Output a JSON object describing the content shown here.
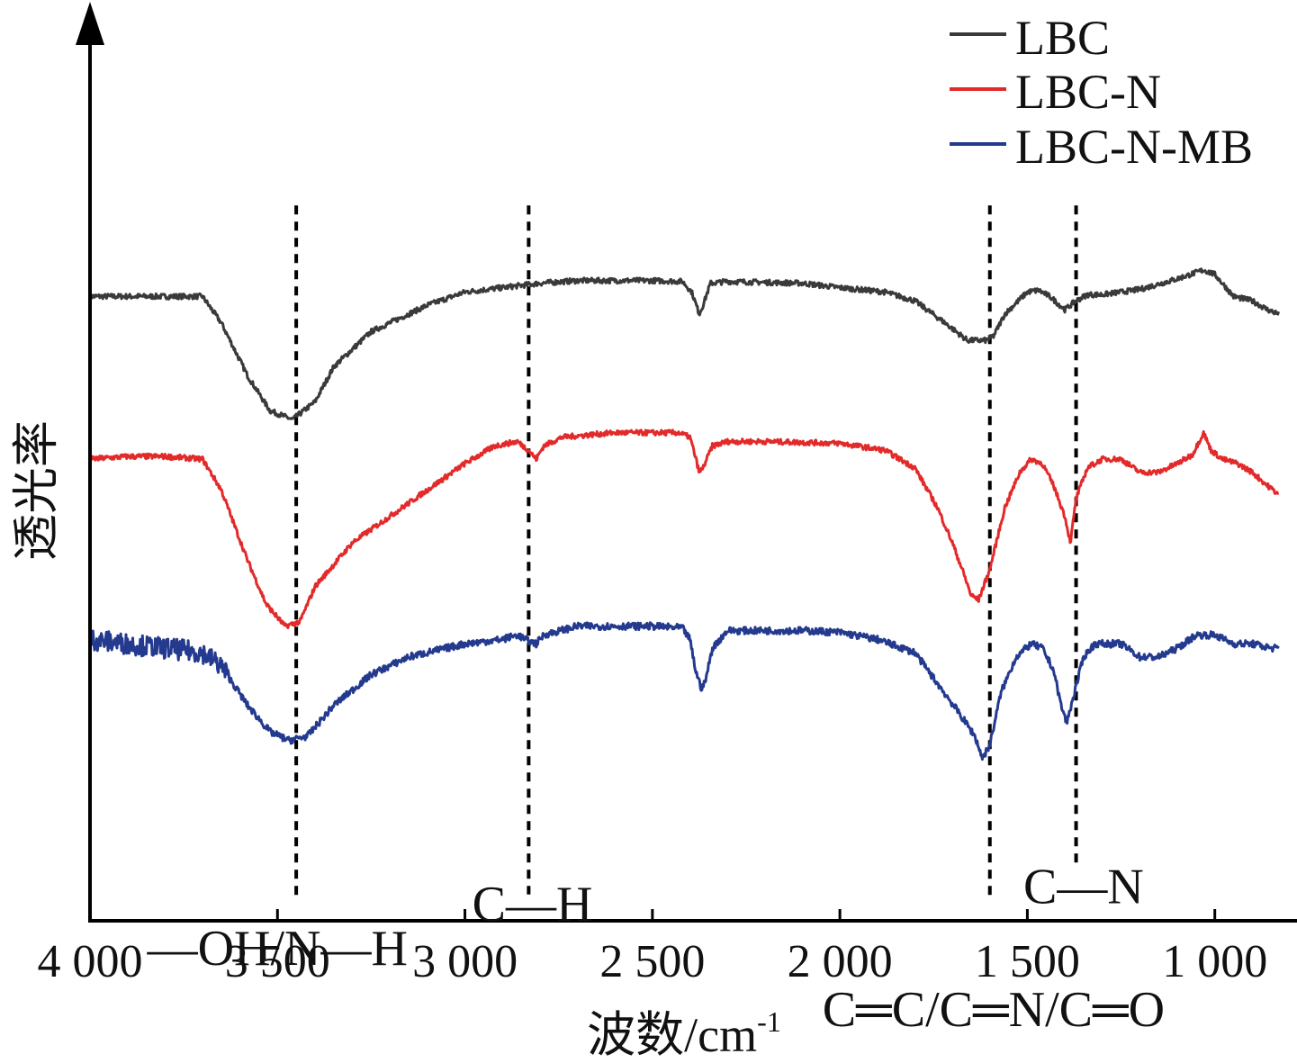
{
  "chart_data": {
    "type": "line",
    "xlabel": "波数/cm",
    "xlabel_sup": "-1",
    "ylabel": "透光率",
    "xlim": [
      4000,
      800
    ],
    "x_ticks": [
      4000,
      3500,
      3000,
      2500,
      2000,
      1500,
      1000
    ],
    "x_tick_labels": [
      "4 000",
      "3 500",
      "3 000",
      "2 500",
      "2 000",
      "1 500",
      "1 000"
    ],
    "y_ticks": [],
    "grid": false,
    "legend_position": "top-right",
    "series": [
      {
        "name": "LBC",
        "color": "#3a3a3a",
        "noise": 0.003,
        "points": [
          [
            4000,
            0.71
          ],
          [
            3800,
            0.71
          ],
          [
            3700,
            0.71
          ],
          [
            3650,
            0.68
          ],
          [
            3580,
            0.62
          ],
          [
            3520,
            0.58
          ],
          [
            3460,
            0.57
          ],
          [
            3400,
            0.59
          ],
          [
            3350,
            0.63
          ],
          [
            3250,
            0.67
          ],
          [
            3100,
            0.7
          ],
          [
            3000,
            0.715
          ],
          [
            2900,
            0.72
          ],
          [
            2800,
            0.725
          ],
          [
            2700,
            0.728
          ],
          [
            2500,
            0.728
          ],
          [
            2420,
            0.727
          ],
          [
            2395,
            0.715
          ],
          [
            2375,
            0.69
          ],
          [
            2365,
            0.7
          ],
          [
            2345,
            0.725
          ],
          [
            2300,
            0.727
          ],
          [
            2100,
            0.725
          ],
          [
            2000,
            0.72
          ],
          [
            1880,
            0.715
          ],
          [
            1800,
            0.705
          ],
          [
            1720,
            0.68
          ],
          [
            1660,
            0.66
          ],
          [
            1610,
            0.66
          ],
          [
            1590,
            0.665
          ],
          [
            1560,
            0.69
          ],
          [
            1500,
            0.715
          ],
          [
            1470,
            0.717
          ],
          [
            1440,
            0.71
          ],
          [
            1400,
            0.695
          ],
          [
            1385,
            0.7
          ],
          [
            1370,
            0.705
          ],
          [
            1340,
            0.712
          ],
          [
            1300,
            0.712
          ],
          [
            1200,
            0.718
          ],
          [
            1100,
            0.73
          ],
          [
            1030,
            0.74
          ],
          [
            1000,
            0.735
          ],
          [
            950,
            0.71
          ],
          [
            900,
            0.705
          ],
          [
            860,
            0.695
          ],
          [
            830,
            0.69
          ]
        ]
      },
      {
        "name": "LBC-N",
        "color": "#e32a2a",
        "noise": 0.003,
        "points": [
          [
            4000,
            0.525
          ],
          [
            3900,
            0.528
          ],
          [
            3800,
            0.528
          ],
          [
            3700,
            0.525
          ],
          [
            3650,
            0.49
          ],
          [
            3580,
            0.41
          ],
          [
            3530,
            0.36
          ],
          [
            3480,
            0.335
          ],
          [
            3440,
            0.34
          ],
          [
            3400,
            0.38
          ],
          [
            3300,
            0.43
          ],
          [
            3200,
            0.46
          ],
          [
            3100,
            0.49
          ],
          [
            3000,
            0.52
          ],
          [
            2920,
            0.54
          ],
          [
            2860,
            0.545
          ],
          [
            2830,
            0.535
          ],
          [
            2810,
            0.525
          ],
          [
            2790,
            0.54
          ],
          [
            2740,
            0.55
          ],
          [
            2600,
            0.555
          ],
          [
            2430,
            0.555
          ],
          [
            2400,
            0.55
          ],
          [
            2390,
            0.535
          ],
          [
            2375,
            0.51
          ],
          [
            2365,
            0.515
          ],
          [
            2340,
            0.54
          ],
          [
            2300,
            0.545
          ],
          [
            2200,
            0.545
          ],
          [
            2000,
            0.543
          ],
          [
            1880,
            0.535
          ],
          [
            1800,
            0.515
          ],
          [
            1740,
            0.47
          ],
          [
            1700,
            0.43
          ],
          [
            1670,
            0.395
          ],
          [
            1650,
            0.37
          ],
          [
            1630,
            0.365
          ],
          [
            1600,
            0.4
          ],
          [
            1560,
            0.47
          ],
          [
            1520,
            0.51
          ],
          [
            1490,
            0.525
          ],
          [
            1460,
            0.52
          ],
          [
            1430,
            0.495
          ],
          [
            1400,
            0.46
          ],
          [
            1385,
            0.43
          ],
          [
            1370,
            0.48
          ],
          [
            1340,
            0.515
          ],
          [
            1300,
            0.525
          ],
          [
            1250,
            0.525
          ],
          [
            1200,
            0.51
          ],
          [
            1150,
            0.51
          ],
          [
            1100,
            0.52
          ],
          [
            1060,
            0.53
          ],
          [
            1030,
            0.555
          ],
          [
            1010,
            0.535
          ],
          [
            980,
            0.525
          ],
          [
            940,
            0.52
          ],
          [
            900,
            0.51
          ],
          [
            860,
            0.495
          ],
          [
            830,
            0.485
          ]
        ]
      },
      {
        "name": "LBC-N-MB",
        "color": "#243a8e",
        "noise": 0.004,
        "noise_big_below": 3630,
        "noise_big": 0.012,
        "points": [
          [
            4000,
            0.32
          ],
          [
            3900,
            0.315
          ],
          [
            3800,
            0.31
          ],
          [
            3700,
            0.305
          ],
          [
            3650,
            0.29
          ],
          [
            3580,
            0.245
          ],
          [
            3520,
            0.215
          ],
          [
            3470,
            0.205
          ],
          [
            3420,
            0.21
          ],
          [
            3350,
            0.245
          ],
          [
            3250,
            0.28
          ],
          [
            3150,
            0.3
          ],
          [
            3000,
            0.315
          ],
          [
            2900,
            0.32
          ],
          [
            2860,
            0.325
          ],
          [
            2830,
            0.318
          ],
          [
            2810,
            0.315
          ],
          [
            2790,
            0.325
          ],
          [
            2700,
            0.335
          ],
          [
            2500,
            0.335
          ],
          [
            2420,
            0.333
          ],
          [
            2400,
            0.32
          ],
          [
            2385,
            0.285
          ],
          [
            2370,
            0.265
          ],
          [
            2360,
            0.27
          ],
          [
            2340,
            0.31
          ],
          [
            2300,
            0.33
          ],
          [
            2100,
            0.33
          ],
          [
            2000,
            0.328
          ],
          [
            1900,
            0.32
          ],
          [
            1800,
            0.305
          ],
          [
            1740,
            0.27
          ],
          [
            1680,
            0.235
          ],
          [
            1640,
            0.21
          ],
          [
            1620,
            0.185
          ],
          [
            1600,
            0.2
          ],
          [
            1570,
            0.26
          ],
          [
            1530,
            0.3
          ],
          [
            1490,
            0.315
          ],
          [
            1460,
            0.31
          ],
          [
            1430,
            0.285
          ],
          [
            1410,
            0.245
          ],
          [
            1395,
            0.225
          ],
          [
            1380,
            0.25
          ],
          [
            1350,
            0.3
          ],
          [
            1320,
            0.315
          ],
          [
            1250,
            0.315
          ],
          [
            1200,
            0.3
          ],
          [
            1150,
            0.3
          ],
          [
            1100,
            0.31
          ],
          [
            1050,
            0.325
          ],
          [
            1000,
            0.325
          ],
          [
            950,
            0.315
          ],
          [
            900,
            0.315
          ],
          [
            850,
            0.31
          ],
          [
            830,
            0.31
          ]
        ]
      }
    ],
    "reference_lines": [
      {
        "x": 3450,
        "y_top": 0.98,
        "y_bottom": 0.0
      },
      {
        "x": 2830,
        "y_top": 0.98,
        "y_bottom": 0.03
      },
      {
        "x": 1600,
        "y_top": 0.98,
        "y_bottom": -0.04
      },
      {
        "x": 1370,
        "y_top": 0.98,
        "y_bottom": 0.06
      }
    ],
    "annotations": [
      {
        "text": "—OH/N—H",
        "x": 3500,
        "y": -0.05
      },
      {
        "text": "C—H",
        "x": 2820,
        "y": 0.0
      },
      {
        "text": "C—N",
        "x": 1350,
        "y": 0.02
      },
      {
        "text": "C═C/C═N/C═O",
        "x": 1590,
        "y": -0.12
      }
    ]
  }
}
